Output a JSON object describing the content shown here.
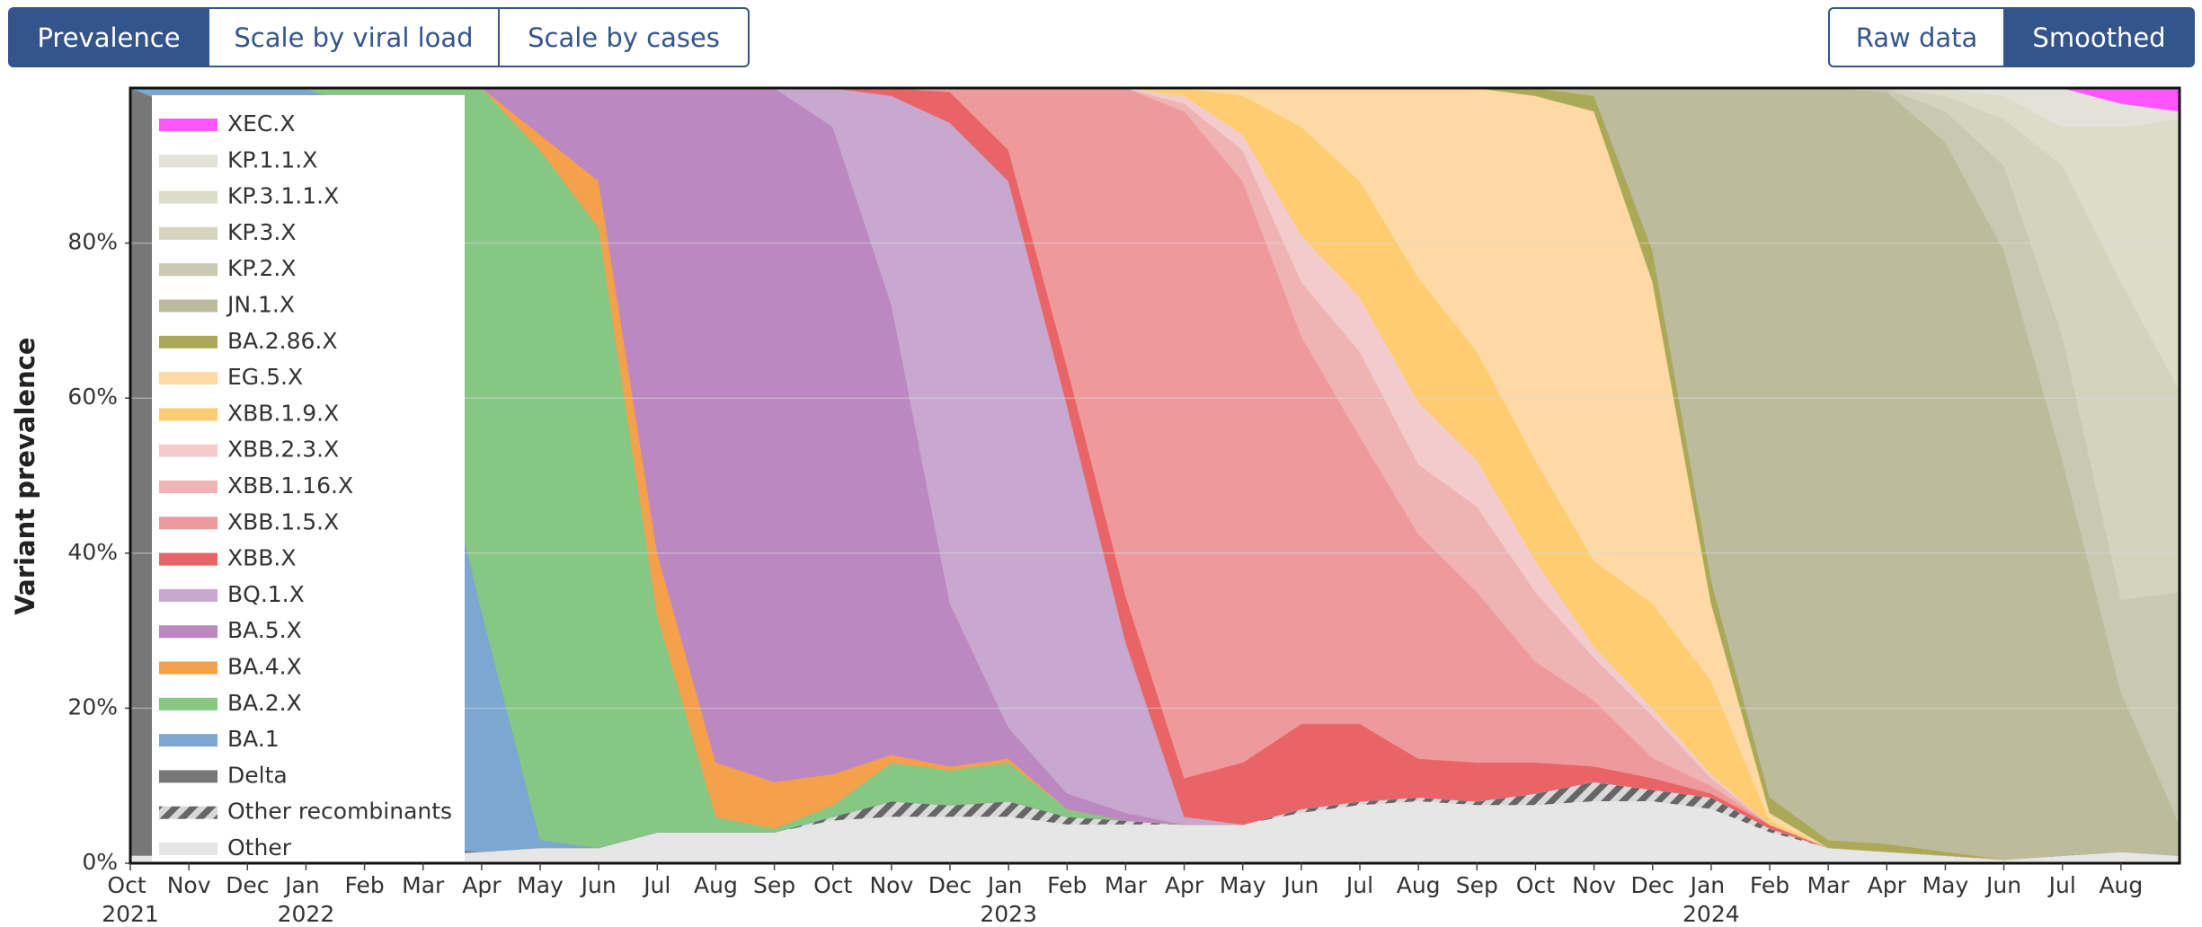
{
  "controls": {
    "modes": [
      {
        "label": "Prevalence",
        "active": true
      },
      {
        "label": "Scale by viral load",
        "active": false
      },
      {
        "label": "Scale by cases",
        "active": false
      }
    ],
    "smoothing": [
      {
        "label": "Raw data",
        "active": false
      },
      {
        "label": "Smoothed",
        "active": true
      }
    ]
  },
  "chart_data": {
    "type": "area",
    "stacked": true,
    "y_label": "Variant prevalence",
    "x": [
      "2021-10",
      "2021-11",
      "2021-12",
      "2022-01",
      "2022-02",
      "2022-03",
      "2022-04",
      "2022-05",
      "2022-06",
      "2022-07",
      "2022-08",
      "2022-09",
      "2022-10",
      "2022-11",
      "2022-12",
      "2023-01",
      "2023-02",
      "2023-03",
      "2023-04",
      "2023-05",
      "2023-06",
      "2023-07",
      "2023-08",
      "2023-09",
      "2023-10",
      "2023-11",
      "2023-12",
      "2024-01",
      "2024-02",
      "2024-03",
      "2024-04",
      "2024-05",
      "2024-06",
      "2024-07",
      "2024-08",
      "2024-09"
    ],
    "xlim": [
      "2021-10",
      "2024-09"
    ],
    "xticks": [
      {
        "value": "2021-10",
        "label": "Oct 2021"
      },
      {
        "value": "2021-11",
        "label": "Nov"
      },
      {
        "value": "2021-12",
        "label": "Dec"
      },
      {
        "value": "2022-01",
        "label": "Jan 2022"
      },
      {
        "value": "2022-02",
        "label": "Feb"
      },
      {
        "value": "2022-03",
        "label": "Mar"
      },
      {
        "value": "2022-04",
        "label": "Apr"
      },
      {
        "value": "2022-05",
        "label": "May"
      },
      {
        "value": "2022-06",
        "label": "Jun"
      },
      {
        "value": "2022-07",
        "label": "Jul"
      },
      {
        "value": "2022-08",
        "label": "Aug"
      },
      {
        "value": "2022-09",
        "label": "Sep"
      },
      {
        "value": "2022-10",
        "label": "Oct"
      },
      {
        "value": "2022-11",
        "label": "Nov"
      },
      {
        "value": "2022-12",
        "label": "Dec"
      },
      {
        "value": "2023-01",
        "label": "Jan 2023"
      },
      {
        "value": "2023-02",
        "label": "Feb"
      },
      {
        "value": "2023-03",
        "label": "Mar"
      },
      {
        "value": "2023-04",
        "label": "Apr"
      },
      {
        "value": "2023-05",
        "label": "May"
      },
      {
        "value": "2023-06",
        "label": "Jun"
      },
      {
        "value": "2023-07",
        "label": "Jul"
      },
      {
        "value": "2023-08",
        "label": "Aug"
      },
      {
        "value": "2023-09",
        "label": "Sep"
      },
      {
        "value": "2023-10",
        "label": "Oct"
      },
      {
        "value": "2023-11",
        "label": "Nov"
      },
      {
        "value": "2023-12",
        "label": "Dec"
      },
      {
        "value": "2024-01",
        "label": "Jan 2024"
      },
      {
        "value": "2024-02",
        "label": "Feb"
      },
      {
        "value": "2024-03",
        "label": "Mar"
      },
      {
        "value": "2024-04",
        "label": "Apr"
      },
      {
        "value": "2024-05",
        "label": "May"
      },
      {
        "value": "2024-06",
        "label": "Jun"
      },
      {
        "value": "2024-07",
        "label": "Jul"
      },
      {
        "value": "2024-08",
        "label": "Aug"
      }
    ],
    "ylim": [
      0,
      100
    ],
    "yticks": [
      {
        "value": 0,
        "label": "0%"
      },
      {
        "value": 20,
        "label": "20%"
      },
      {
        "value": 40,
        "label": "40%"
      },
      {
        "value": 60,
        "label": "60%"
      },
      {
        "value": 80,
        "label": "80%"
      }
    ],
    "grid": true,
    "legend": "upper left",
    "series": [
      {
        "name": "Other",
        "color": "#e6e6e6",
        "values": [
          1,
          1,
          1,
          1,
          1,
          1,
          1.5,
          2,
          2,
          4,
          4,
          4,
          5.5,
          6,
          6,
          6,
          5,
          5,
          5,
          5,
          6.5,
          7.5,
          8,
          7.5,
          7.5,
          8,
          8,
          7,
          4,
          2,
          1.5,
          1,
          0.5,
          1,
          1.5,
          1
        ]
      },
      {
        "name": "Other recombinants",
        "color": "#777777",
        "pattern": "hatch",
        "values": [
          0,
          0,
          0,
          0,
          0,
          0,
          0,
          0,
          0,
          0,
          0,
          0,
          0.5,
          2,
          1.5,
          2,
          1,
          0.5,
          0,
          0,
          0.5,
          0.5,
          0.5,
          0.5,
          1.5,
          2.5,
          1.5,
          1.5,
          0.5,
          0,
          0,
          0,
          0,
          0,
          0,
          0
        ]
      },
      {
        "name": "Delta",
        "color": "#777777",
        "values": [
          99,
          96,
          70,
          15,
          3,
          1,
          0,
          0,
          0,
          0,
          0,
          0,
          0,
          0,
          0,
          0,
          0,
          0,
          0,
          0,
          0,
          0,
          0,
          0,
          0,
          0,
          0,
          0,
          0,
          0,
          0,
          0,
          0,
          0,
          0,
          0
        ]
      },
      {
        "name": "BA.1",
        "color": "#7ba7d0",
        "values": [
          0,
          3,
          29,
          84,
          93,
          62,
          31,
          1,
          0,
          0,
          0,
          0,
          0,
          0,
          0,
          0,
          0,
          0,
          0,
          0,
          0,
          0,
          0,
          0,
          0,
          0,
          0,
          0,
          0,
          0,
          0,
          0,
          0,
          0,
          0,
          0
        ]
      },
      {
        "name": "BA.2.X",
        "color": "#86c783",
        "values": [
          0,
          0,
          0,
          0,
          3,
          36,
          67.5,
          89,
          80,
          28,
          2,
          0.5,
          1.5,
          5,
          4.5,
          5,
          1,
          0,
          0,
          0,
          0,
          0,
          0,
          0,
          0,
          0,
          0,
          0,
          0,
          0,
          0,
          0,
          0,
          0,
          0,
          0
        ]
      },
      {
        "name": "BA.4.X",
        "color": "#f5a04a",
        "values": [
          0,
          0,
          0,
          0,
          0,
          0,
          0,
          2,
          6,
          8,
          7,
          6,
          4,
          1,
          0.5,
          0.5,
          0,
          0,
          0,
          0,
          0,
          0,
          0,
          0,
          0,
          0,
          0,
          0,
          0,
          0,
          0,
          0,
          0,
          0,
          0,
          0
        ]
      },
      {
        "name": "BA.5.X",
        "color": "#bb88c1",
        "values": [
          0,
          0,
          0,
          0,
          0,
          0,
          0,
          6,
          12,
          60,
          87,
          89.5,
          83.5,
          58,
          21,
          4,
          2,
          1,
          0,
          0,
          0,
          0,
          0,
          0,
          0,
          0,
          0,
          0,
          0,
          0,
          0,
          0,
          0,
          0,
          0,
          0
        ]
      },
      {
        "name": "BQ.1.X",
        "color": "#c8a8ce",
        "values": [
          0,
          0,
          0,
          0,
          0,
          0,
          0,
          0,
          0,
          0,
          0,
          0,
          5,
          27,
          62,
          70.5,
          50,
          22,
          1,
          0,
          0,
          0,
          0,
          0,
          0,
          0,
          0,
          0,
          0,
          0,
          0,
          0,
          0,
          0,
          0,
          0
        ]
      },
      {
        "name": "XBB.X",
        "color": "#e96466",
        "values": [
          0,
          0,
          0,
          0,
          0,
          0,
          0,
          0,
          0,
          0,
          0,
          0,
          0,
          1,
          4,
          4,
          5,
          6,
          5,
          8,
          11,
          10,
          5,
          5,
          4,
          2,
          1.5,
          0.5,
          0.5,
          0,
          0,
          0,
          0,
          0,
          0,
          0
        ]
      },
      {
        "name": "XBB.1.5.X",
        "color": "#ee9a9c",
        "values": [
          0,
          0,
          0,
          0,
          0,
          0,
          0,
          0,
          0,
          0,
          0,
          0,
          0,
          0,
          0.5,
          8,
          36,
          65.5,
          86,
          75,
          50,
          37,
          29,
          22,
          13,
          8.5,
          2.6,
          1,
          0,
          0,
          0,
          0,
          0,
          0,
          0,
          0
        ]
      },
      {
        "name": "XBB.1.16.X",
        "color": "#f0b3b3",
        "values": [
          0,
          0,
          0,
          0,
          0,
          0,
          0,
          0,
          0,
          0,
          0,
          0,
          0,
          0,
          0,
          0,
          0,
          0,
          1,
          4,
          7,
          11,
          9,
          11,
          9,
          5.5,
          5.4,
          1,
          0,
          0,
          0,
          0,
          0,
          0,
          0,
          0
        ]
      },
      {
        "name": "XBB.2.3.X",
        "color": "#f4cbcc",
        "values": [
          0,
          0,
          0,
          0,
          0,
          0,
          0,
          0,
          0,
          0,
          0,
          0,
          0,
          0,
          0,
          0,
          0,
          0,
          1,
          2,
          6,
          7,
          8,
          6,
          4,
          1.5,
          1,
          0.5,
          0,
          0,
          0,
          0,
          0,
          0,
          0,
          0
        ]
      },
      {
        "name": "XBB.1.9.X",
        "color": "#fecd72",
        "values": [
          0,
          0,
          0,
          0,
          0,
          0,
          0,
          0,
          0,
          0,
          0,
          0,
          0,
          0,
          0,
          0,
          0,
          0,
          1,
          5,
          14,
          15,
          16,
          14,
          13,
          11,
          13.5,
          12,
          0.5,
          0,
          0,
          0,
          0,
          0,
          0,
          0
        ]
      },
      {
        "name": "EG.5.X",
        "color": "#fed9a3",
        "values": [
          0,
          0,
          0,
          0,
          0,
          0,
          0,
          0,
          0,
          0,
          0,
          0,
          0,
          0,
          0,
          0,
          0,
          0,
          0,
          1,
          5,
          12,
          24.5,
          34,
          47,
          58,
          41.5,
          10,
          1,
          0,
          0,
          0,
          0,
          0,
          0,
          0
        ]
      },
      {
        "name": "BA.2.86.X",
        "color": "#a9a957",
        "values": [
          0,
          0,
          0,
          0,
          0,
          0,
          0,
          0,
          0,
          0,
          0,
          0,
          0,
          0,
          0,
          0,
          0,
          0,
          0,
          0,
          0,
          0,
          0,
          0,
          1,
          2,
          4,
          3,
          2,
          1,
          1,
          0.5,
          0,
          0,
          0,
          0
        ]
      },
      {
        "name": "JN.1.X",
        "color": "#bcbb9c",
        "values": [
          0,
          0,
          0,
          0,
          0,
          0,
          0,
          0,
          0,
          0,
          0,
          0,
          0,
          0,
          0,
          0,
          0,
          0,
          0,
          0,
          0,
          0,
          0,
          0,
          0,
          1,
          21,
          63.5,
          91.5,
          97,
          97,
          91.5,
          78.5,
          51,
          20.5,
          4
        ]
      },
      {
        "name": "KP.2.X",
        "color": "#c9c8b0",
        "values": [
          0,
          0,
          0,
          0,
          0,
          0,
          0,
          0,
          0,
          0,
          0,
          0,
          0,
          0,
          0,
          0,
          0,
          0,
          0,
          0,
          0,
          0,
          0,
          0,
          0,
          0,
          0,
          0,
          0,
          0,
          0.5,
          4,
          11,
          16,
          12,
          30
        ]
      },
      {
        "name": "KP.3.X",
        "color": "#d3d3be",
        "values": [
          0,
          0,
          0,
          0,
          0,
          0,
          0,
          0,
          0,
          0,
          0,
          0,
          0,
          0,
          0,
          0,
          0,
          0,
          0,
          0,
          0,
          0,
          0,
          0,
          0,
          0,
          0,
          0,
          0,
          0,
          0,
          2,
          6,
          22,
          41,
          26
        ]
      },
      {
        "name": "KP.3.1.1.X",
        "color": "#dcdccb",
        "values": [
          0,
          0,
          0,
          0,
          0,
          0,
          0,
          0,
          0,
          0,
          0,
          0,
          0,
          0,
          0,
          0,
          0,
          0,
          0,
          0,
          0,
          0,
          0,
          0,
          0,
          0,
          0,
          0,
          0,
          0,
          0,
          1,
          3,
          5,
          20,
          35
        ]
      },
      {
        "name": "KP.1.1.X",
        "color": "#e2e2d8",
        "values": [
          0,
          0,
          0,
          0,
          0,
          0,
          0,
          0,
          0,
          0,
          0,
          0,
          0,
          0,
          0,
          0,
          0,
          0,
          0,
          0,
          0,
          0,
          0,
          0,
          0,
          0,
          0,
          0,
          0,
          0,
          0,
          0,
          1,
          5,
          3,
          1
        ]
      },
      {
        "name": "XEC.X",
        "color": "#ff55ff",
        "values": [
          0,
          0,
          0,
          0,
          0,
          0,
          0,
          0,
          0,
          0,
          0,
          0,
          0,
          0,
          0,
          0,
          0,
          0,
          0,
          0,
          0,
          0,
          0,
          0,
          0,
          0,
          0,
          0,
          0,
          0,
          0,
          0,
          0,
          0,
          2,
          3
        ]
      }
    ]
  }
}
